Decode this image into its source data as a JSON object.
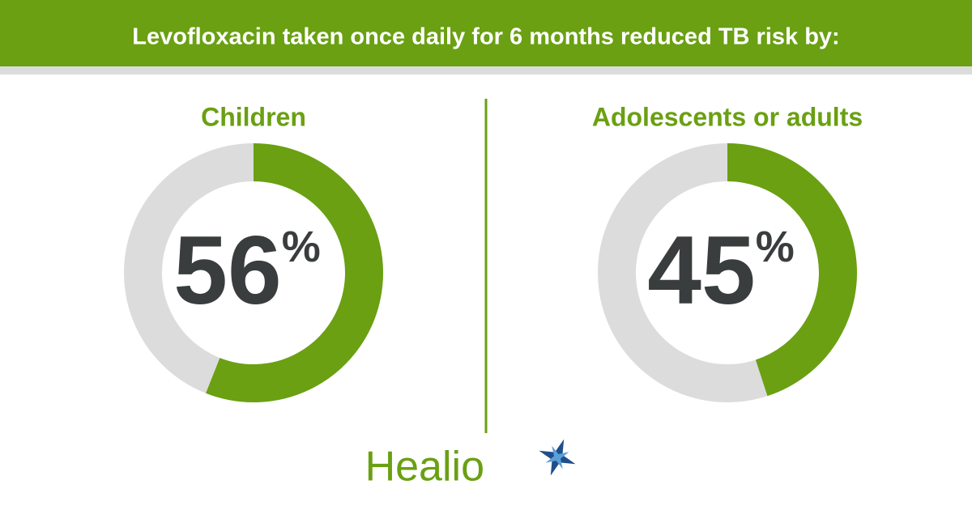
{
  "title": "Levofloxacin taken once daily for 6 months reduced TB risk by:",
  "chart_data": [
    {
      "type": "donut",
      "title": "Children",
      "values": [
        56
      ],
      "value_labels": [
        "56%"
      ],
      "color": "#6aa012",
      "track_color": "#dcdcdc"
    },
    {
      "type": "donut",
      "title": "Adolescents or adults",
      "values": [
        45
      ],
      "value_labels": [
        "45%"
      ],
      "color": "#6aa012",
      "track_color": "#dcdcdc"
    }
  ],
  "logo": "Healio"
}
